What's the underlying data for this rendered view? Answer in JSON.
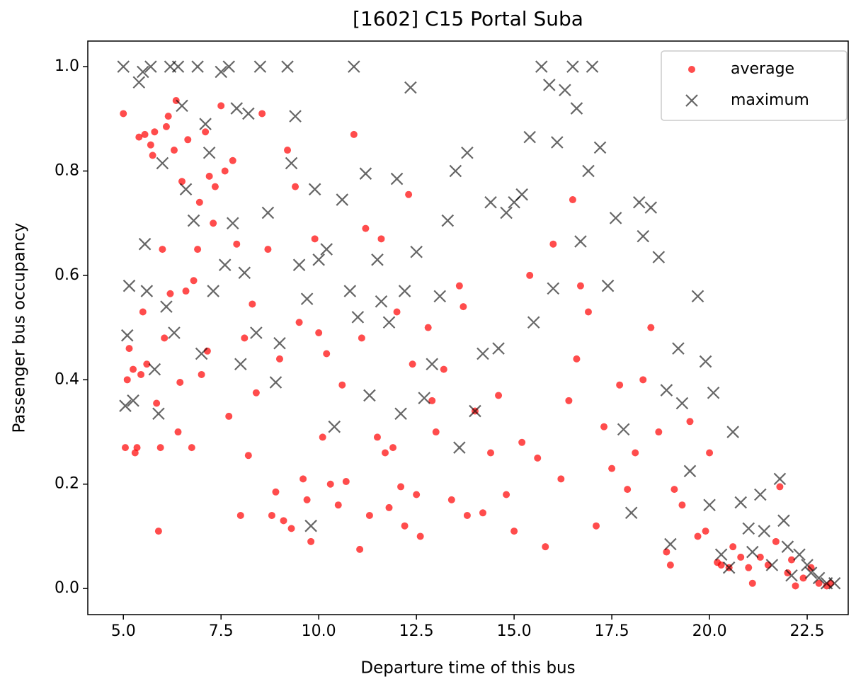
{
  "chart_data": {
    "type": "scatter",
    "title": "[1602] C15 Portal Suba",
    "xlabel": "Departure time of this bus",
    "ylabel": "Passenger bus occupancy",
    "xlim": [
      4.09,
      23.55
    ],
    "ylim": [
      -0.05,
      1.049
    ],
    "xticks": [
      {
        "value": 5,
        "label": "5.0"
      },
      7.5,
      {
        "value": 10,
        "label": "10.0"
      },
      12.5,
      {
        "value": 15,
        "label": "15.0"
      },
      17.5,
      {
        "value": 20,
        "label": "20.0"
      },
      22.5
    ],
    "yticks": [
      {
        "value": 0,
        "label": "0.0"
      },
      0.2,
      0.4,
      0.6,
      0.8,
      {
        "value": 1,
        "label": "1.0"
      }
    ],
    "legend": "upper right",
    "series": [
      {
        "name": "average",
        "color": "#ff0000",
        "marker": "o",
        "x": [
          5.0,
          5.05,
          5.1,
          5.15,
          5.25,
          5.3,
          5.35,
          5.4,
          5.45,
          5.5,
          5.55,
          5.6,
          5.7,
          5.75,
          5.8,
          5.85,
          5.9,
          5.95,
          6.0,
          6.05,
          6.1,
          6.15,
          6.2,
          6.3,
          6.35,
          6.4,
          6.45,
          6.5,
          6.6,
          6.65,
          6.75,
          6.8,
          6.9,
          6.95,
          7.0,
          7.1,
          7.15,
          7.2,
          7.3,
          7.35,
          7.5,
          7.6,
          7.7,
          7.8,
          7.9,
          8.0,
          8.1,
          8.2,
          8.3,
          8.4,
          8.55,
          8.7,
          8.8,
          8.9,
          9.0,
          9.1,
          9.2,
          9.3,
          9.4,
          9.5,
          9.6,
          9.7,
          9.8,
          9.9,
          10.0,
          10.1,
          10.2,
          10.3,
          10.5,
          10.6,
          10.7,
          10.9,
          11.05,
          11.1,
          11.2,
          11.3,
          11.5,
          11.6,
          11.7,
          11.8,
          11.9,
          12.0,
          12.1,
          12.2,
          12.3,
          12.4,
          12.5,
          12.6,
          12.8,
          12.9,
          13.0,
          13.2,
          13.4,
          13.6,
          13.7,
          13.8,
          14.0,
          14.2,
          14.4,
          14.6,
          14.8,
          15.0,
          15.2,
          15.4,
          15.6,
          15.8,
          16.0,
          16.2,
          16.4,
          16.5,
          16.6,
          16.7,
          16.9,
          17.1,
          17.3,
          17.5,
          17.7,
          17.9,
          18.1,
          18.3,
          18.5,
          18.7,
          18.9,
          19.0,
          19.1,
          19.3,
          19.5,
          19.7,
          19.9,
          20.0,
          20.2,
          20.3,
          20.5,
          20.6,
          20.8,
          21.0,
          21.1,
          21.3,
          21.5,
          21.7,
          21.8,
          22.0,
          22.1,
          22.2,
          22.4,
          22.6,
          22.8,
          23.0,
          23.1
        ],
        "values": [
          0.91,
          0.27,
          0.4,
          0.46,
          0.42,
          0.26,
          0.27,
          0.865,
          0.41,
          0.53,
          0.87,
          0.43,
          0.85,
          0.83,
          0.875,
          0.355,
          0.11,
          0.27,
          0.65,
          0.48,
          0.885,
          0.905,
          0.565,
          0.84,
          0.935,
          0.3,
          0.395,
          0.78,
          0.57,
          0.86,
          0.27,
          0.59,
          0.65,
          0.74,
          0.41,
          0.875,
          0.455,
          0.79,
          0.7,
          0.77,
          0.925,
          0.8,
          0.33,
          0.82,
          0.66,
          0.14,
          0.48,
          0.255,
          0.545,
          0.375,
          0.91,
          0.65,
          0.14,
          0.185,
          0.44,
          0.13,
          0.84,
          0.115,
          0.77,
          0.51,
          0.21,
          0.17,
          0.09,
          0.67,
          0.49,
          0.29,
          0.45,
          0.2,
          0.16,
          0.39,
          0.205,
          0.87,
          0.075,
          0.48,
          0.69,
          0.14,
          0.29,
          0.67,
          0.26,
          0.155,
          0.27,
          0.53,
          0.195,
          0.12,
          0.755,
          0.43,
          0.18,
          0.1,
          0.5,
          0.36,
          0.3,
          0.42,
          0.17,
          0.58,
          0.54,
          0.14,
          0.34,
          0.145,
          0.26,
          0.37,
          0.18,
          0.11,
          0.28,
          0.6,
          0.25,
          0.08,
          0.66,
          0.21,
          0.36,
          0.745,
          0.44,
          0.58,
          0.53,
          0.12,
          0.31,
          0.23,
          0.39,
          0.19,
          0.26,
          0.4,
          0.5,
          0.3,
          0.07,
          0.045,
          0.19,
          0.16,
          0.32,
          0.1,
          0.11,
          0.26,
          0.05,
          0.045,
          0.04,
          0.08,
          0.06,
          0.04,
          0.01,
          0.06,
          0.045,
          0.09,
          0.195,
          0.03,
          0.055,
          0.005,
          0.02,
          0.04,
          0.01,
          0.005,
          0.01
        ]
      },
      {
        "name": "maximum",
        "color": "#000000",
        "marker": "x",
        "x": [
          5.0,
          5.05,
          5.1,
          5.15,
          5.25,
          5.4,
          5.5,
          5.55,
          5.6,
          5.7,
          5.8,
          5.9,
          6.0,
          6.1,
          6.2,
          6.3,
          6.4,
          6.5,
          6.6,
          6.8,
          6.9,
          7.0,
          7.1,
          7.2,
          7.3,
          7.5,
          7.6,
          7.7,
          7.8,
          7.9,
          8.0,
          8.1,
          8.2,
          8.4,
          8.5,
          8.7,
          8.9,
          9.0,
          9.2,
          9.3,
          9.4,
          9.5,
          9.7,
          9.8,
          9.9,
          10.0,
          10.2,
          10.4,
          10.6,
          10.8,
          10.9,
          11.0,
          11.2,
          11.3,
          11.5,
          11.6,
          11.8,
          12.0,
          12.1,
          12.2,
          12.35,
          12.5,
          12.7,
          12.9,
          13.1,
          13.3,
          13.5,
          13.6,
          13.8,
          14.0,
          14.2,
          14.4,
          14.6,
          14.8,
          15.0,
          15.2,
          15.4,
          15.5,
          15.7,
          15.9,
          16.0,
          16.1,
          16.3,
          16.5,
          16.6,
          16.7,
          16.9,
          17.0,
          17.2,
          17.4,
          17.6,
          17.8,
          18.0,
          18.2,
          18.3,
          18.5,
          18.7,
          18.9,
          19.0,
          19.2,
          19.3,
          19.5,
          19.7,
          19.9,
          20.0,
          20.1,
          20.3,
          20.5,
          20.6,
          20.8,
          21.0,
          21.1,
          21.3,
          21.4,
          21.6,
          21.8,
          21.9,
          22.0,
          22.1,
          22.3,
          22.5,
          22.6,
          22.8,
          23.0,
          23.2
        ],
        "values": [
          1.0,
          0.35,
          0.485,
          0.58,
          0.36,
          0.97,
          0.99,
          0.66,
          0.57,
          1.0,
          0.42,
          0.335,
          0.815,
          0.54,
          1.0,
          0.49,
          1.0,
          0.925,
          0.765,
          0.705,
          1.0,
          0.45,
          0.89,
          0.835,
          0.57,
          0.99,
          0.62,
          1.0,
          0.7,
          0.92,
          0.43,
          0.605,
          0.91,
          0.49,
          1.0,
          0.72,
          0.395,
          0.47,
          1.0,
          0.815,
          0.905,
          0.62,
          0.555,
          0.12,
          0.765,
          0.63,
          0.65,
          0.31,
          0.745,
          0.57,
          1.0,
          0.52,
          0.795,
          0.37,
          0.63,
          0.55,
          0.51,
          0.785,
          0.335,
          0.57,
          0.96,
          0.645,
          0.365,
          0.43,
          0.56,
          0.705,
          0.8,
          0.27,
          0.835,
          0.34,
          0.45,
          0.74,
          0.46,
          0.72,
          0.74,
          0.755,
          0.865,
          0.51,
          1.0,
          0.965,
          0.575,
          0.855,
          0.955,
          1.0,
          0.92,
          0.665,
          0.8,
          1.0,
          0.845,
          0.58,
          0.71,
          0.305,
          0.145,
          0.74,
          0.675,
          0.73,
          0.635,
          0.38,
          0.085,
          0.46,
          0.355,
          0.225,
          0.56,
          0.435,
          0.16,
          0.375,
          0.065,
          0.04,
          0.3,
          0.165,
          0.115,
          0.07,
          0.18,
          0.11,
          0.045,
          0.21,
          0.13,
          0.08,
          0.025,
          0.065,
          0.045,
          0.03,
          0.02,
          0.01,
          0.01
        ]
      }
    ]
  }
}
